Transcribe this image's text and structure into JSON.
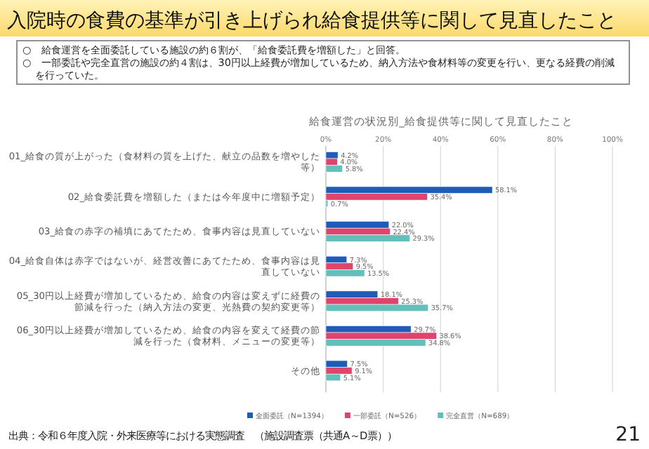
{
  "chart_data": {
    "type": "bar",
    "orientation": "horizontal",
    "title": "入院時の食費の基準が引き上げられ給食提供等に関して見直したこと",
    "subtitle": "給食運営の状況別_給食提供等に関して見直したこと",
    "annotations": [
      "○　給食運営を全面委託している施設の約６割が、「給食委託費を増額した」と回答。",
      "○　一部委託や完全直営の施設の約４割は、30円以上経費が増加しているため、納入方法や食材料等の変更を行い、更なる経費の削減を行っていた。",
      "出典：令和６年度入院・外来医療等における実態調査　（施設調査票（共通A～D票））",
      "21"
    ],
    "categories": [
      "01_給食の質が上がった（食材料の質を上げた、献立の品数を増やした等）",
      "02_給食委託費を増額した（または今年度中に増額予定）",
      "03_給食の赤字の補填にあてたため、食事内容は見直していない",
      "04_給食自体は赤字ではないが、経営改善にあてたため、食事内容は見直していない",
      "05_30円以上経費が増加しているため、給食の内容は変えずに経費の節減を行った（納入方法の変更、光熱費の契約変更等）",
      "06_30円以上経費が増加しているため、給食の内容を変えて経費の節減を行った（食材料、メニューの変更等）",
      "その他"
    ],
    "series": [
      {
        "name": "全面委託（N=1394）",
        "color": "#1f5cb8",
        "values": [
          4.2,
          58.1,
          22.0,
          7.3,
          18.1,
          29.7,
          7.5
        ],
        "value_labels": [
          "4.2%",
          "58.1%",
          "22.0%",
          "7.3%",
          "18.1%",
          "29.7%",
          "7.5%"
        ]
      },
      {
        "name": "一部委託（N=526）",
        "color": "#e0446c",
        "values": [
          4.0,
          35.4,
          22.4,
          9.5,
          25.3,
          38.6,
          9.1
        ],
        "value_labels": [
          "4.0%",
          "35.4%",
          "22.4%",
          "9.5%",
          "25.3%",
          "38.6%",
          "9.1%"
        ]
      },
      {
        "name": "完全直営（N=689）",
        "color": "#62bfb9",
        "values": [
          5.8,
          0.7,
          29.3,
          13.5,
          35.7,
          34.8,
          5.1
        ],
        "value_labels": [
          "5.8%",
          "0.7%",
          "29.3%",
          "13.5%",
          "35.7%",
          "34.8%",
          "5.1%"
        ]
      }
    ],
    "xlim": [
      0,
      100
    ],
    "xticks": [
      {
        "value": 0,
        "label": "0%"
      },
      {
        "value": 20,
        "label": "20%"
      },
      {
        "value": 40,
        "label": "40%"
      },
      {
        "value": 60,
        "label": "60%"
      },
      {
        "value": 80,
        "label": "80%"
      },
      {
        "value": 100,
        "label": "100%"
      }
    ],
    "grid": "x",
    "legend": "bottom"
  }
}
